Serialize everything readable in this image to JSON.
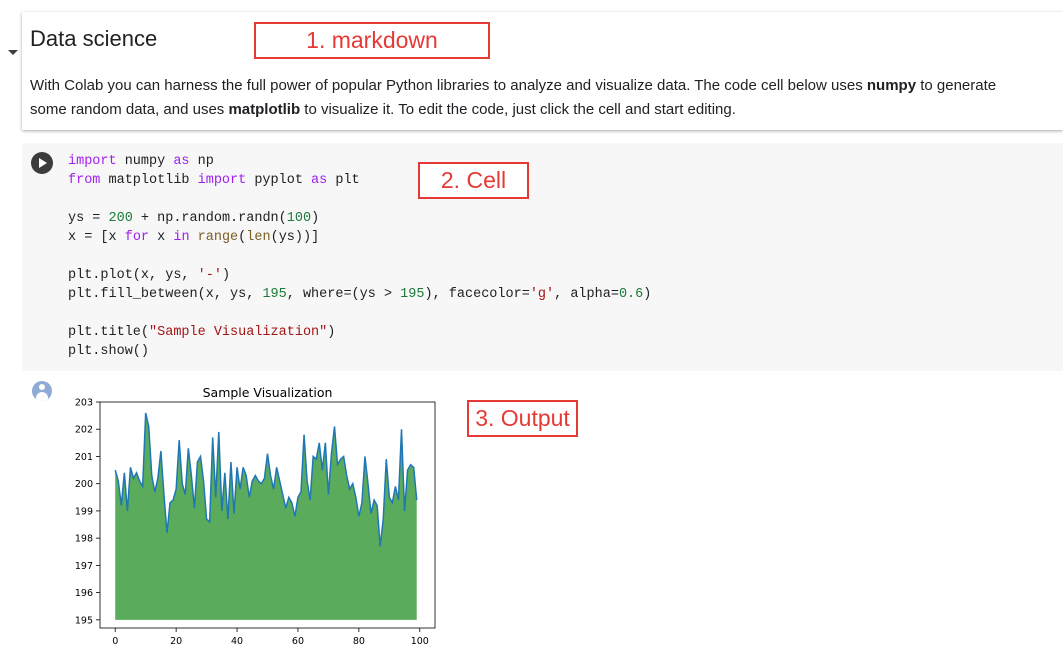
{
  "text_cell": {
    "heading": "Data science",
    "para_1": "With Colab you can harness the full power of popular Python libraries to analyze and visualize data. The code cell below uses ",
    "para_bold_1": "numpy",
    "para_2": " to generate some random data, and uses ",
    "para_bold_2": "matplotlib",
    "para_3": " to visualize it. To edit the code, just click the cell and start editing."
  },
  "annotations": {
    "markdown": "1. markdown",
    "cell": "2. Cell",
    "output": "3. Output"
  },
  "code_cell": {
    "lines": [
      [
        {
          "t": "import",
          "c": "kw"
        },
        {
          "t": " numpy ",
          "c": ""
        },
        {
          "t": "as",
          "c": "kw"
        },
        {
          "t": " np",
          "c": ""
        }
      ],
      [
        {
          "t": "from",
          "c": "kw"
        },
        {
          "t": " matplotlib ",
          "c": ""
        },
        {
          "t": "import",
          "c": "kw"
        },
        {
          "t": " pyplot ",
          "c": ""
        },
        {
          "t": "as",
          "c": "kw"
        },
        {
          "t": " plt",
          "c": ""
        }
      ],
      [],
      [
        {
          "t": "ys = ",
          "c": ""
        },
        {
          "t": "200",
          "c": "num"
        },
        {
          "t": " + np.random.randn(",
          "c": ""
        },
        {
          "t": "100",
          "c": "num"
        },
        {
          "t": ")",
          "c": ""
        }
      ],
      [
        {
          "t": "x = [x ",
          "c": ""
        },
        {
          "t": "for",
          "c": "kw"
        },
        {
          "t": " x ",
          "c": ""
        },
        {
          "t": "in",
          "c": "kw"
        },
        {
          "t": " ",
          "c": ""
        },
        {
          "t": "range",
          "c": "bi"
        },
        {
          "t": "(",
          "c": ""
        },
        {
          "t": "len",
          "c": "bi"
        },
        {
          "t": "(ys))]",
          "c": ""
        }
      ],
      [],
      [
        {
          "t": "plt.plot(x, ys, ",
          "c": ""
        },
        {
          "t": "'-'",
          "c": "str"
        },
        {
          "t": ")",
          "c": ""
        }
      ],
      [
        {
          "t": "plt.fill_between(x, ys, ",
          "c": ""
        },
        {
          "t": "195",
          "c": "num"
        },
        {
          "t": ", where=(ys > ",
          "c": ""
        },
        {
          "t": "195",
          "c": "num"
        },
        {
          "t": "), facecolor=",
          "c": ""
        },
        {
          "t": "'g'",
          "c": "str"
        },
        {
          "t": ", alpha=",
          "c": ""
        },
        {
          "t": "0.6",
          "c": "num"
        },
        {
          "t": ")",
          "c": ""
        }
      ],
      [],
      [
        {
          "t": "plt.title(",
          "c": ""
        },
        {
          "t": "\"Sample Visualization\"",
          "c": "str"
        },
        {
          "t": ")",
          "c": ""
        }
      ],
      [
        {
          "t": "plt.show()",
          "c": ""
        }
      ]
    ]
  },
  "chart_data": {
    "type": "area",
    "title": "Sample Visualization",
    "xlabel": "",
    "ylabel": "",
    "xlim": [
      -5,
      105
    ],
    "ylim": [
      194.7,
      203.0
    ],
    "xticks": [
      0,
      20,
      40,
      60,
      80,
      100
    ],
    "yticks": [
      195,
      196,
      197,
      198,
      199,
      200,
      201,
      202,
      203
    ],
    "line_color": "#1f77b4",
    "fill_color": "#5aab5b",
    "fill_base": 195,
    "x_start": 0,
    "y": [
      200.5,
      200.1,
      199.2,
      200.4,
      199.0,
      200.6,
      200.2,
      200.4,
      200.1,
      199.9,
      202.6,
      202.1,
      200.3,
      199.7,
      200.2,
      201.2,
      199.6,
      198.2,
      199.3,
      199.4,
      199.8,
      201.6,
      200.0,
      199.6,
      201.3,
      200.3,
      199.1,
      200.8,
      201.0,
      200.1,
      198.7,
      198.6,
      201.7,
      199.5,
      201.9,
      199.0,
      200.4,
      198.7,
      200.8,
      198.9,
      200.6,
      199.8,
      200.6,
      200.3,
      199.5,
      200.1,
      200.3,
      200.1,
      200.0,
      200.2,
      201.1,
      200.3,
      199.8,
      200.6,
      200.1,
      199.6,
      199.1,
      199.5,
      199.3,
      198.8,
      199.5,
      199.7,
      201.8,
      200.1,
      199.4,
      201.0,
      200.9,
      201.5,
      200.5,
      201.5,
      199.6,
      201.1,
      202.1,
      200.7,
      200.9,
      201.0,
      200.3,
      199.8,
      200.0,
      199.5,
      198.8,
      199.3,
      201.0,
      200.0,
      198.9,
      199.4,
      199.2,
      197.7,
      198.7,
      200.9,
      199.5,
      199.3,
      199.9,
      199.4,
      202.0,
      199.0,
      200.5,
      200.7,
      200.6,
      199.4
    ]
  }
}
